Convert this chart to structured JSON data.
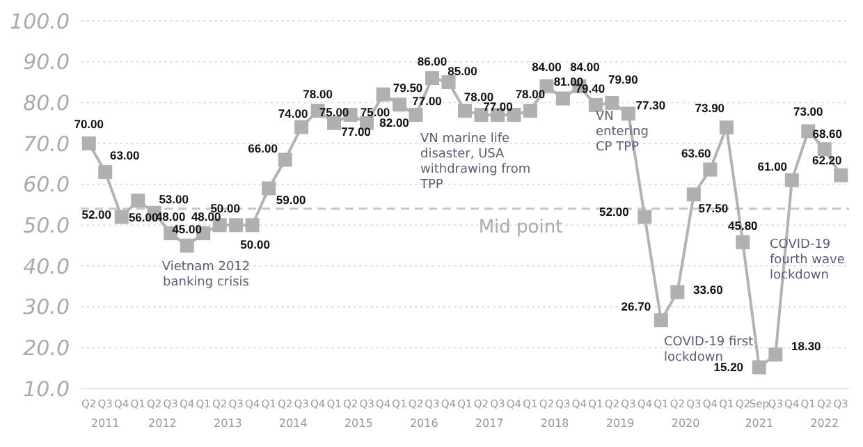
{
  "chart_data": {
    "type": "line",
    "categories": [
      "Q2",
      "Q3",
      "Q4",
      "Q1",
      "Q2",
      "Q3",
      "Q4",
      "Q1",
      "Q2",
      "Q3",
      "Q4",
      "Q1",
      "Q2",
      "Q3",
      "Q4",
      "Q1",
      "Q2",
      "Q3",
      "Q4",
      "Q1",
      "Q2",
      "Q3",
      "Q4",
      "Q1",
      "Q2",
      "Q3",
      "Q4",
      "Q1",
      "Q2",
      "Q3",
      "Q4",
      "Q1",
      "Q2",
      "Q3",
      "Q4",
      "Q1",
      "Q2",
      "Q3",
      "Q4",
      "Q1",
      "Q2",
      "Sep",
      "Q3",
      "Q4",
      "Q1",
      "Q2",
      "Q3"
    ],
    "series": [
      {
        "color": "#b3b3b3",
        "values": [
          70,
          63,
          52,
          56,
          53,
          48,
          45,
          48,
          50,
          50,
          50,
          59,
          66,
          74,
          78,
          75,
          77,
          75,
          82,
          79.5,
          77,
          86,
          85,
          78,
          77,
          77,
          77,
          78,
          84,
          81,
          84,
          79.4,
          79.9,
          77.3,
          52,
          26.7,
          33.6,
          57.5,
          63.6,
          73.9,
          45.8,
          15.2,
          18.3,
          61,
          73,
          68.6,
          62.2
        ],
        "value_labels": [
          "70.00",
          "63.00",
          "52.00",
          "56.00",
          "53.00",
          "48.00",
          "45.00",
          "48.00",
          "50.00",
          null,
          "50.00",
          "59.00",
          "66.00",
          "74.00",
          "78.00",
          "75.00",
          "77.00",
          "75.00",
          "82.00",
          "79.50",
          "77.00",
          "86.00",
          "85.00",
          "78.00",
          "77.00",
          null,
          null,
          "78.00",
          "84.00",
          "81.00",
          "84.00",
          "79.40",
          "79.90",
          "77.30",
          "52.00",
          "26.70",
          "33.60",
          "57.50",
          "63.60",
          "73.90",
          "45.80",
          "15.20",
          "18.30",
          "61.00",
          "73.00",
          "68.60",
          "62.20"
        ]
      }
    ],
    "ylim": [
      10,
      100
    ],
    "yticks": [
      {
        "value": 10,
        "label": "10.0"
      },
      {
        "value": 20,
        "label": "20.0"
      },
      {
        "value": 30,
        "label": "30.0"
      },
      {
        "value": 40,
        "label": "40.0"
      },
      {
        "value": 50,
        "label": "50.0"
      },
      {
        "value": 60,
        "label": "60.0"
      },
      {
        "value": 70,
        "label": "70.0"
      },
      {
        "value": 80,
        "label": "80.0"
      },
      {
        "value": 90,
        "label": "90.0"
      },
      {
        "value": 100,
        "label": "100.0"
      }
    ],
    "grid": "y",
    "marker": "square",
    "line_style": "solid",
    "ref_lines": [
      {
        "axis": "y",
        "value": 54,
        "label": "Mid point",
        "color": "#c8c8c8",
        "line_style": "dashed"
      }
    ],
    "annotations": [
      "2011",
      "2012",
      "2013",
      "2014",
      "2015",
      "2016",
      "2017",
      "2018",
      "2019",
      "2020",
      "2021",
      "2022",
      "Vietnam 2012 banking crisis",
      "VN marine life disaster, USA withdrawing from TPP",
      "VN entering CP TPP",
      "COVID-19 first lockdown",
      "COVID-19 fourth wave lockdown"
    ]
  }
}
